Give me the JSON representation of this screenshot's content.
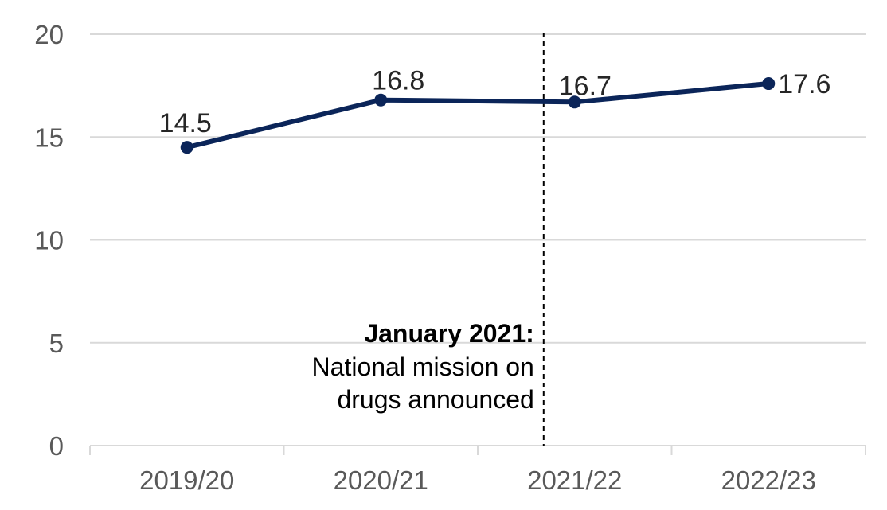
{
  "chart_data": {
    "type": "line",
    "title": "",
    "xlabel": "",
    "ylabel": "",
    "categories": [
      "2019/20",
      "2020/21",
      "2021/22",
      "2022/23"
    ],
    "series": [
      {
        "values": [
          14.5,
          16.8,
          16.7,
          17.6
        ],
        "color": "#0b2559"
      }
    ],
    "data_labels": [
      "14.5",
      "16.8",
      "16.7",
      "17.6"
    ],
    "ylim": [
      0,
      20
    ],
    "y_ticks": [
      0,
      5,
      10,
      15,
      20
    ],
    "grid": "horizontal",
    "legend": "none",
    "annotation": {
      "position_category_index": 1.84,
      "line_style": "dashed",
      "title": "January 2021:",
      "lines": [
        "National mission on",
        "drugs announced"
      ]
    }
  }
}
